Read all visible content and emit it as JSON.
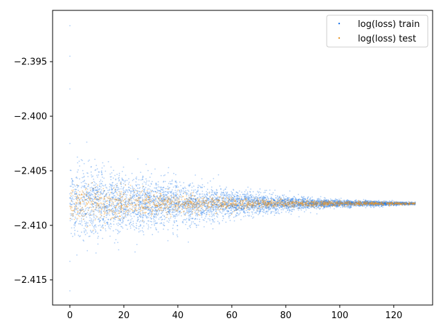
{
  "chart_data": {
    "type": "scatter",
    "title": "",
    "xlabel": "",
    "ylabel": "",
    "xlim": [
      -6.4,
      134.4
    ],
    "ylim": [
      -2.4173,
      -2.3903
    ],
    "xticks": [
      0,
      20,
      40,
      60,
      80,
      100,
      120
    ],
    "xtick_labels": [
      "0",
      "20",
      "40",
      "60",
      "80",
      "100",
      "120"
    ],
    "yticks": [
      -2.395,
      -2.4,
      -2.405,
      -2.41,
      -2.415
    ],
    "ytick_labels": [
      "−2.395",
      "−2.400",
      "−2.405",
      "−2.410",
      "−2.415"
    ],
    "grid": false,
    "legend_position": "top-right",
    "series": [
      {
        "name": "log(loss) train",
        "color": "#1f77e8",
        "center": -2.408,
        "x_range": [
          0,
          128
        ],
        "spread_profile": [
          {
            "x": 0,
            "half_width": 0.0032
          },
          {
            "x": 20,
            "half_width": 0.0025
          },
          {
            "x": 40,
            "half_width": 0.0018
          },
          {
            "x": 60,
            "half_width": 0.0011
          },
          {
            "x": 80,
            "half_width": 0.0006
          },
          {
            "x": 100,
            "half_width": 0.0003
          },
          {
            "x": 128,
            "half_width": 0.0001
          }
        ],
        "outliers": [
          {
            "x": 0,
            "y": -2.3917
          },
          {
            "x": 0,
            "y": -2.3945
          },
          {
            "x": 0,
            "y": -2.3975
          },
          {
            "x": 0,
            "y": -2.4025
          },
          {
            "x": 0,
            "y": -2.4133
          },
          {
            "x": 0,
            "y": -2.416
          }
        ]
      },
      {
        "name": "log(loss) test",
        "color": "#e8962a",
        "center": -2.408,
        "x_range": [
          0,
          128
        ],
        "spread_profile": [
          {
            "x": 0,
            "half_width": 0.0016
          },
          {
            "x": 20,
            "half_width": 0.0012
          },
          {
            "x": 40,
            "half_width": 0.0008
          },
          {
            "x": 60,
            "half_width": 0.0005
          },
          {
            "x": 80,
            "half_width": 0.0003
          },
          {
            "x": 100,
            "half_width": 0.0002
          },
          {
            "x": 128,
            "half_width": 0.0001
          }
        ],
        "outliers": []
      }
    ]
  }
}
